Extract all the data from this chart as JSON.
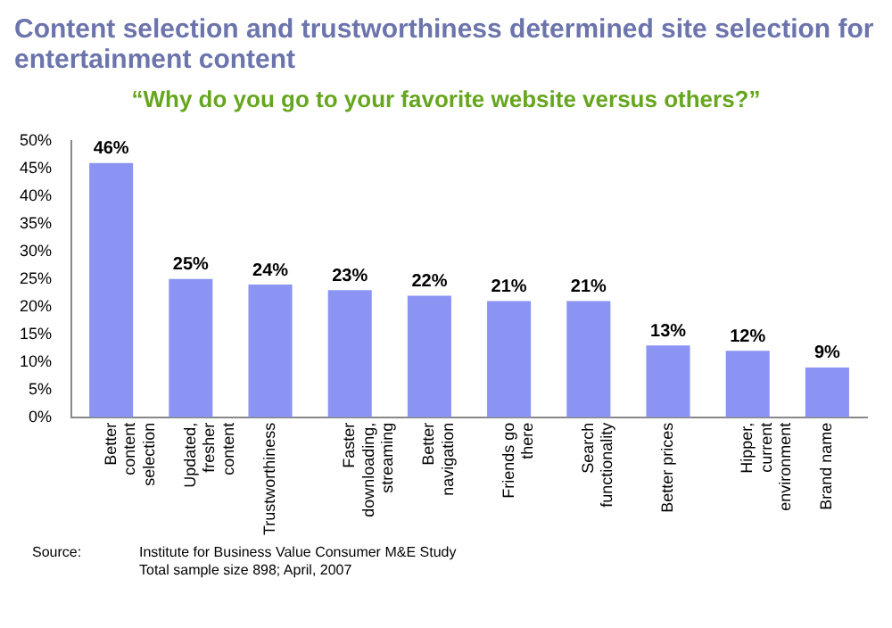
{
  "chart_data": {
    "type": "bar",
    "title": "Content selection and trustworthiness determined site selection for entertainment content",
    "subtitle": "“Why do you go to your favorite website versus others?”",
    "categories": [
      "Better content selection",
      "Updated, fresher content",
      "Trustworthiness",
      "Faster downloading, streaming",
      "Better navigation",
      "Friends go there",
      "Search functionality",
      "Better prices",
      "Hipper, current environment",
      "Brand name"
    ],
    "values": [
      46,
      25,
      24,
      23,
      22,
      21,
      21,
      13,
      12,
      9
    ],
    "value_labels": [
      "46%",
      "25%",
      "24%",
      "23%",
      "22%",
      "21%",
      "21%",
      "13%",
      "12%",
      "9%"
    ],
    "color": "#8b94f2",
    "ylim": [
      0,
      50
    ],
    "yticks": [
      {
        "value": 0,
        "label": "0%"
      },
      {
        "value": 5,
        "label": "5%"
      },
      {
        "value": 10,
        "label": "10%"
      },
      {
        "value": 15,
        "label": "15%"
      },
      {
        "value": 20,
        "label": "20%"
      },
      {
        "value": 25,
        "label": "25%"
      },
      {
        "value": 30,
        "label": "30%"
      },
      {
        "value": 35,
        "label": "35%"
      },
      {
        "value": 40,
        "label": "40%"
      },
      {
        "value": 45,
        "label": "45%"
      },
      {
        "value": 50,
        "label": "50%"
      }
    ],
    "grid": false,
    "legend": false,
    "annotations": [
      "Source:",
      "Institute for Business Value Consumer M&E Study",
      "Total sample size 898; April, 2007"
    ]
  }
}
